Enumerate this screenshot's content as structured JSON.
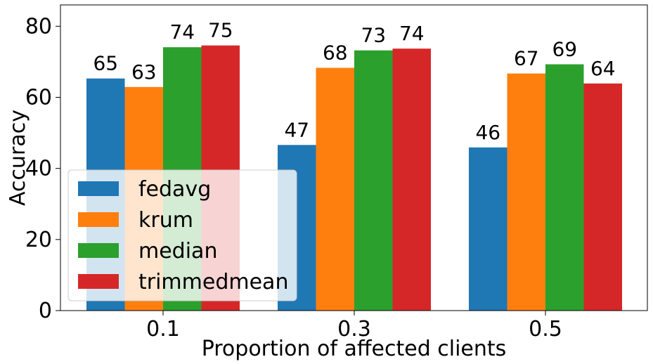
{
  "chart_data": {
    "type": "bar",
    "xlabel": "Proportion of affected clients",
    "ylabel": "Accuracy",
    "categories": [
      "0.1",
      "0.3",
      "0.5"
    ],
    "series": [
      {
        "name": "fedavg",
        "color": "#1f77b4",
        "values": [
          65.3,
          46.6,
          45.9
        ],
        "labels": [
          "65",
          "47",
          "46"
        ]
      },
      {
        "name": "krum",
        "color": "#ff7f0e",
        "values": [
          62.9,
          68.3,
          66.7
        ],
        "labels": [
          "63",
          "68",
          "67"
        ]
      },
      {
        "name": "median",
        "color": "#2ca02c",
        "values": [
          74.1,
          73.2,
          69.3
        ],
        "labels": [
          "74",
          "73",
          "69"
        ]
      },
      {
        "name": "trimmedmean",
        "color": "#d62728",
        "values": [
          74.6,
          73.7,
          63.9
        ],
        "labels": [
          "75",
          "74",
          "64"
        ]
      }
    ],
    "ylim": [
      0,
      86
    ],
    "yticks": [
      0,
      20,
      40,
      60,
      80
    ],
    "legend_position": "lower-left",
    "grid": false
  }
}
